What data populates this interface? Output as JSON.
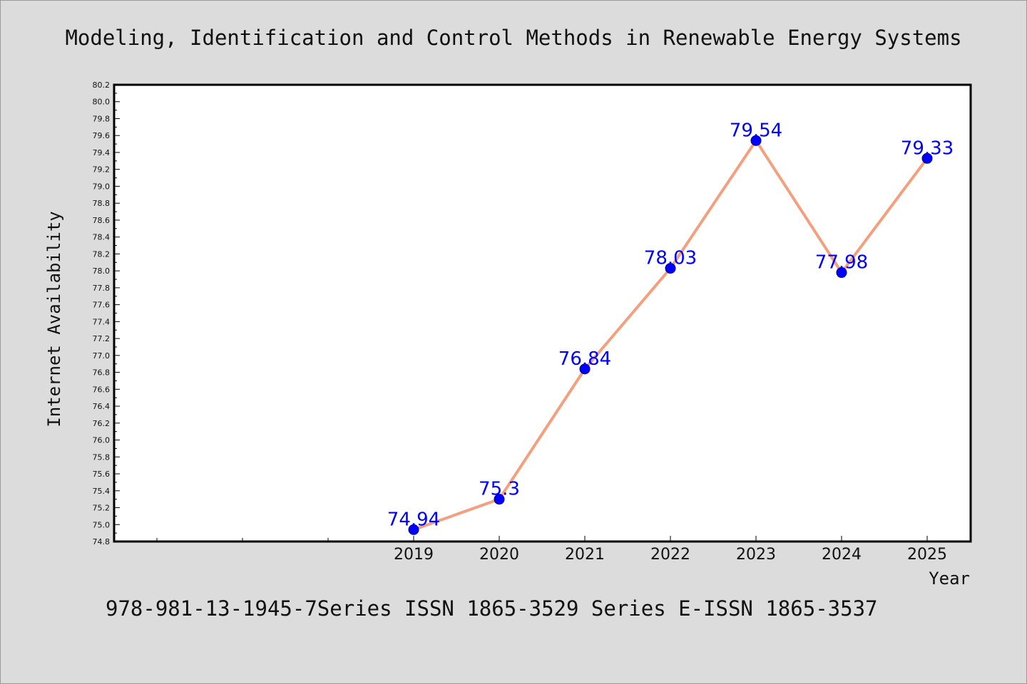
{
  "colors": {
    "background": "#dcdcdc",
    "plot_background": "#ffffff",
    "line": "#f4a07e",
    "marker": "#0000ff",
    "data_label": "#0000ff"
  },
  "chart_data": {
    "type": "line",
    "title": "Modeling, Identification and Control Methods in Renewable Energy Systems",
    "xlabel": "Year",
    "ylabel": "Internet Availability",
    "footer": "978-981-13-1945-7Series ISSN 1865-3529 Series E-ISSN 1865-3537",
    "x": [
      "2019",
      "2020",
      "2021",
      "2022",
      "2023",
      "2024",
      "2025"
    ],
    "series": [
      {
        "values": [
          74.94,
          75.3,
          76.84,
          78.03,
          79.54,
          77.98,
          79.33
        ]
      }
    ],
    "data_labels": [
      "74.94",
      "75.3",
      "76.84",
      "78.03",
      "79.54",
      "77.98",
      "79.33"
    ],
    "ylim": [
      74.8,
      80.2
    ],
    "yticks": [
      "74.8",
      "75.0",
      "75.2",
      "75.4",
      "75.6",
      "75.8",
      "76.0",
      "76.2",
      "76.4",
      "76.6",
      "76.8",
      "77.0",
      "77.2",
      "77.4",
      "77.6",
      "77.8",
      "78.0",
      "78.2",
      "78.4",
      "78.6",
      "78.8",
      "79.0",
      "79.2",
      "79.4",
      "79.6",
      "79.8",
      "80.0",
      "80.2"
    ],
    "grid": false,
    "legend": "none"
  }
}
